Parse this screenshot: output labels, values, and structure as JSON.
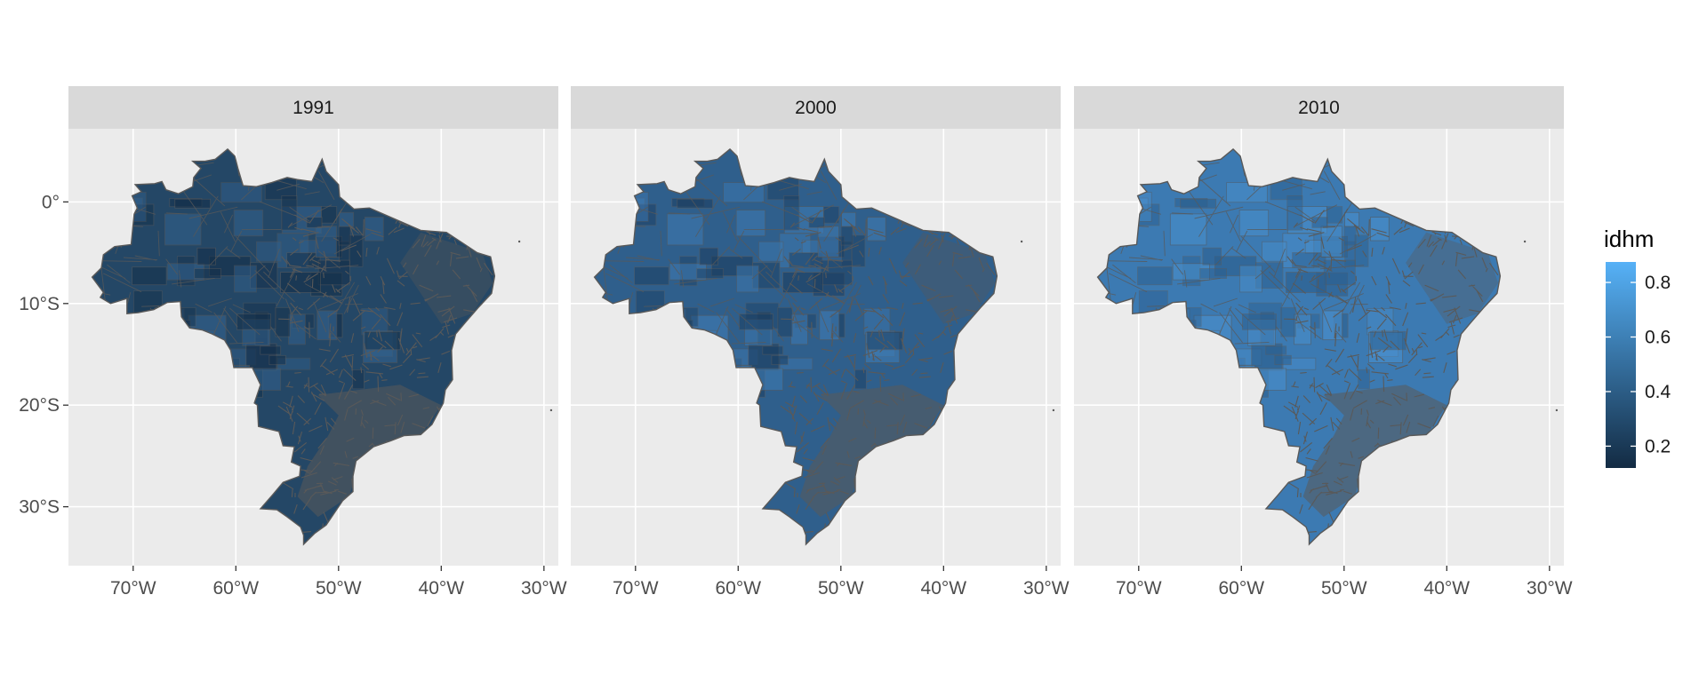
{
  "figure": {
    "facets": [
      {
        "label": "1991",
        "base_color": "#244766",
        "mottle_dark": "#15304a",
        "mottle_light": "#33618c"
      },
      {
        "label": "2000",
        "base_color": "#2f5f8c",
        "mottle_dark": "#1d3f61",
        "mottle_light": "#3f7ab1"
      },
      {
        "label": "2010",
        "base_color": "#3c7ab2",
        "mottle_dark": "#2c5f8e",
        "mottle_light": "#4a8fcb"
      }
    ],
    "x_ticks": [
      {
        "label": "70°W",
        "value": -70
      },
      {
        "label": "60°W",
        "value": -60
      },
      {
        "label": "50°W",
        "value": -50
      },
      {
        "label": "40°W",
        "value": -40
      },
      {
        "label": "30°W",
        "value": -30
      }
    ],
    "y_ticks": [
      {
        "label": "0°",
        "value": 0
      },
      {
        "label": "10°S",
        "value": -10
      },
      {
        "label": "20°S",
        "value": -20
      },
      {
        "label": "30°S",
        "value": -30
      }
    ],
    "x_range": [
      -76.3,
      -28.6
    ],
    "y_range": [
      -35.8,
      7.2
    ],
    "legend": {
      "title": "idhm",
      "position": "right",
      "ticks": [
        {
          "label": "0.2",
          "value": 0.2
        },
        {
          "label": "0.4",
          "value": 0.4
        },
        {
          "label": "0.6",
          "value": 0.6
        },
        {
          "label": "0.8",
          "value": 0.8
        }
      ],
      "range": [
        0.12,
        0.875
      ],
      "color_low": "#132b43",
      "color_high": "#56b1f7"
    },
    "colors": {
      "panel_bg": "#ebebeb",
      "strip_bg": "#d9d9d9",
      "grid": "#ffffff",
      "border": "#595959",
      "text": "#4d4d4d"
    }
  }
}
